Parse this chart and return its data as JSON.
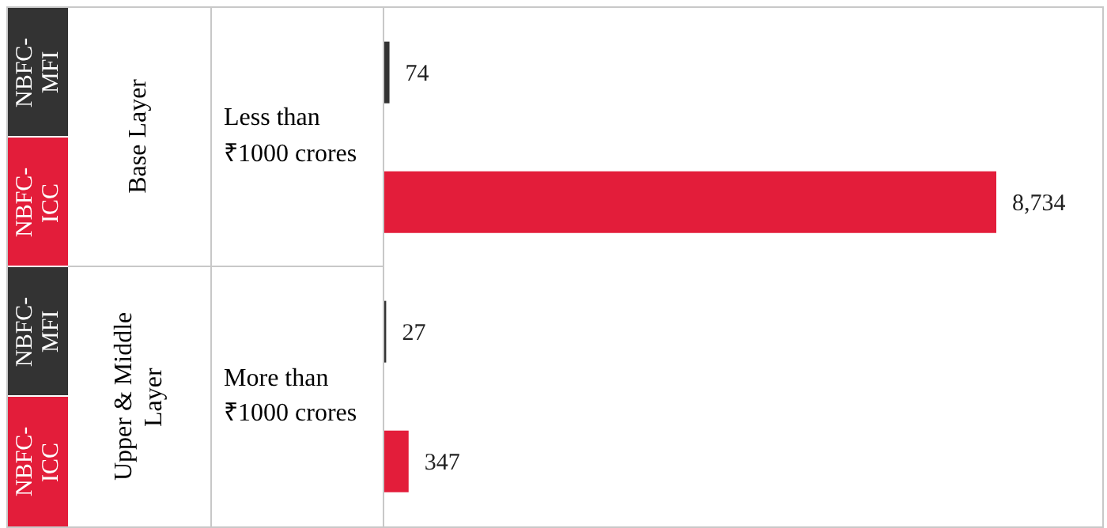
{
  "chart_data": {
    "type": "bar",
    "orientation": "horizontal",
    "value_labels": [
      "74",
      "8,734",
      "27",
      "347"
    ],
    "categories": [
      "NBFC-MFI",
      "NBFC-ICC",
      "NBFC-MFI",
      "NBFC-ICC"
    ],
    "values": [
      74,
      8734,
      27,
      347
    ],
    "colors": [
      "#333333",
      "#e31d3a",
      "#333333",
      "#e31d3a"
    ],
    "annotations": [
      "Base Layer",
      "Less than ₹1000 crores",
      "Upper & Middle Layer",
      "More than ₹1000 crores"
    ]
  }
}
